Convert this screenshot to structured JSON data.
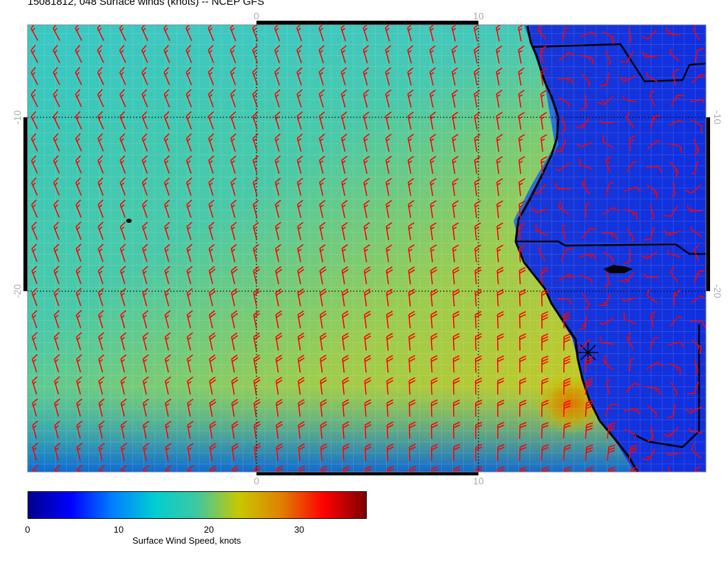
{
  "title": "15081812, 048 Surface winds (knots) -- NCEP GFS",
  "axes": {
    "top_labels": [
      "0",
      "10"
    ],
    "bottom_labels": [
      "0",
      "10"
    ],
    "left_labels": [
      "-10",
      "-20"
    ],
    "right_labels": [
      "-10",
      "-20"
    ],
    "longitude_gridlines_deg": [
      0,
      10
    ],
    "latitude_gridlines_deg": [
      -10,
      -20
    ],
    "gridline_style": "black dotted"
  },
  "colorbar": {
    "label": "Surface Wind Speed, knots",
    "tick_labels": [
      "0",
      "10",
      "20",
      "30"
    ],
    "range": [
      0,
      37
    ],
    "colormap": [
      "#00008f",
      "#0000ff",
      "#0080ff",
      "#00ced1",
      "#3fc8a0",
      "#c8c800",
      "#e08000",
      "#ff0000",
      "#800000"
    ]
  },
  "wind_barbs": {
    "color": "#ff0000",
    "ocean_direction": "southerly / south-easterly flow parallel to coast",
    "speed_range_knots": [
      5,
      30
    ]
  },
  "map_elements": {
    "coastline_color": "#000000",
    "marker": "asterisk",
    "region": "Southeast Atlantic off Angola / Namibia coast"
  }
}
